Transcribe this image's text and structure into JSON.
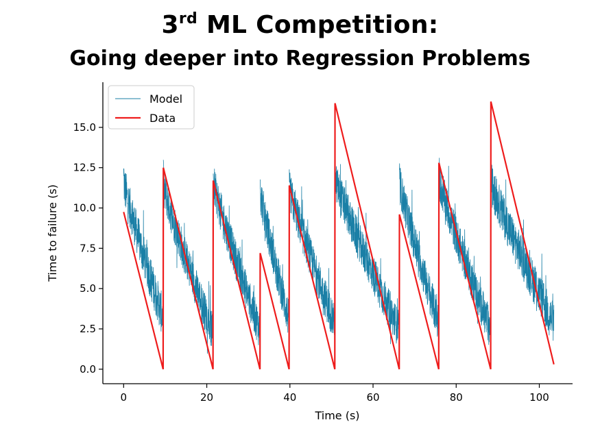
{
  "title": {
    "prefix": "3",
    "suffix": "rd",
    "main": "ML Competition:",
    "subtitle": "Going deeper into Regression Problems"
  },
  "colors": {
    "model": "#1a7fa6",
    "data": "#ee1c1c",
    "axis": "#000000"
  },
  "chart_data": {
    "type": "line",
    "xlabel": "Time (s)",
    "ylabel": "Time to failure (s)",
    "xlim": [
      -5,
      108
    ],
    "ylim": [
      -0.9,
      17.8
    ],
    "xticks": [
      0,
      20,
      40,
      60,
      80,
      100
    ],
    "xtick_labels": [
      "0",
      "20",
      "40",
      "60",
      "80",
      "100"
    ],
    "yticks": [
      0,
      2.5,
      5,
      7.5,
      10,
      12.5,
      15
    ],
    "ytick_labels": [
      "0.0",
      "2.5",
      "5.0",
      "7.5",
      "10.0",
      "12.5",
      "15.0"
    ],
    "legend": {
      "position": "top-left",
      "entries": [
        "Model",
        "Data"
      ]
    },
    "series": [
      {
        "name": "Data",
        "points": [
          [
            0,
            9.75
          ],
          [
            9.5,
            0
          ],
          [
            9.55,
            12.5
          ],
          [
            21.5,
            0
          ],
          [
            21.55,
            11.7
          ],
          [
            32.8,
            0
          ],
          [
            32.85,
            7.2
          ],
          [
            39.8,
            0
          ],
          [
            39.85,
            11.4
          ],
          [
            50.8,
            0
          ],
          [
            50.85,
            16.5
          ],
          [
            66.3,
            0
          ],
          [
            66.35,
            9.6
          ],
          [
            75.8,
            0
          ],
          [
            75.85,
            12.8
          ],
          [
            88.3,
            0
          ],
          [
            88.35,
            16.6
          ],
          [
            103.5,
            0.3
          ]
        ]
      },
      {
        "name": "Model",
        "segments": [
          {
            "start": 0,
            "end": 9.5,
            "top": 11.6,
            "bottom": 3.2,
            "noise": 1.3,
            "peak": 12.9
          },
          {
            "start": 9.55,
            "end": 21.5,
            "top": 11.4,
            "bottom": 2.2,
            "noise": 1.2,
            "peak": 13.0
          },
          {
            "start": 21.55,
            "end": 32.8,
            "top": 11.6,
            "bottom": 2.4,
            "noise": 1.2,
            "peak": 12.5
          },
          {
            "start": 32.85,
            "end": 39.8,
            "top": 11.0,
            "bottom": 3.0,
            "noise": 1.2,
            "peak": 12.5
          },
          {
            "start": 39.85,
            "end": 50.8,
            "top": 11.2,
            "bottom": 2.8,
            "noise": 1.2,
            "peak": 12.4
          },
          {
            "start": 50.85,
            "end": 66.3,
            "top": 11.8,
            "bottom": 2.4,
            "noise": 1.2,
            "peak": 12.5
          },
          {
            "start": 66.35,
            "end": 75.8,
            "top": 11.6,
            "bottom": 2.8,
            "noise": 1.2,
            "peak": 12.9
          },
          {
            "start": 75.85,
            "end": 88.3,
            "top": 11.8,
            "bottom": 2.4,
            "noise": 1.2,
            "peak": 12.6
          },
          {
            "start": 88.35,
            "end": 103.5,
            "top": 11.6,
            "bottom": 2.8,
            "noise": 1.3,
            "peak": 12.6
          }
        ]
      }
    ]
  }
}
